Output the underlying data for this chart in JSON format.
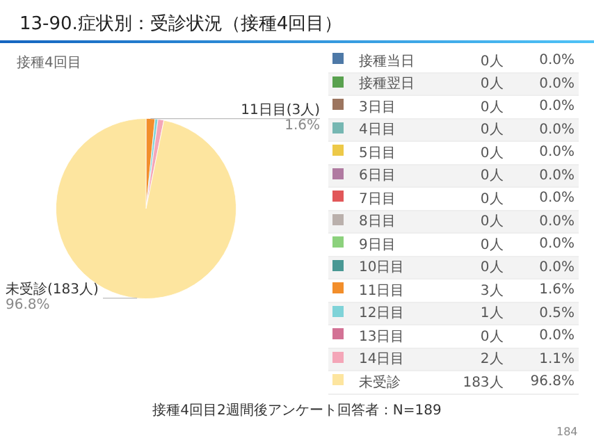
{
  "chart_data": {
    "type": "pie",
    "title": "13-90.症状別：受診状況（接種4回目）",
    "subtitle": "接種4回目",
    "categories": [
      "接種当日",
      "接種翌日",
      "3日目",
      "4日目",
      "5日目",
      "6日目",
      "7日目",
      "8日目",
      "9日目",
      "10日目",
      "11日目",
      "12日目",
      "13日目",
      "14日目",
      "未受診"
    ],
    "values": [
      0,
      0,
      0,
      0,
      0,
      0,
      0,
      0,
      0,
      0,
      3,
      1,
      0,
      2,
      183
    ],
    "colors": [
      "#4e79a7",
      "#59a14f",
      "#9c755f",
      "#76b7b2",
      "#edc948",
      "#b07aa1",
      "#e15759",
      "#bab0ac",
      "#8cd17d",
      "#499894",
      "#f28e2b",
      "#7fd3d8",
      "#d37295",
      "#f4a6b8",
      "#fde59f"
    ],
    "value_labels": [
      "0人",
      "0人",
      "0人",
      "0人",
      "0人",
      "0人",
      "0人",
      "0人",
      "0人",
      "0人",
      "3人",
      "1人",
      "0人",
      "2人",
      "183人"
    ],
    "annotations": [
      {
        "text": "11日目(3人)\n1.6%",
        "x": "11日目"
      },
      {
        "text": "未受診(183人)\n96.8%",
        "x": "未受診"
      },
      {
        "text": "0.0%",
        "x": "接種当日"
      },
      {
        "text": "0.0%",
        "x": "接種翌日"
      },
      {
        "text": "0.0%",
        "x": "3日目"
      },
      {
        "text": "0.0%",
        "x": "4日目"
      },
      {
        "text": "0.0%",
        "x": "5日目"
      },
      {
        "text": "0.0%",
        "x": "6日目"
      },
      {
        "text": "0.0%",
        "x": "7日目"
      },
      {
        "text": "0.0%",
        "x": "8日目"
      },
      {
        "text": "0.0%",
        "x": "9日目"
      },
      {
        "text": "0.0%",
        "x": "10日目"
      },
      {
        "text": "1.6%",
        "x": "11日目"
      },
      {
        "text": "0.5%",
        "x": "12日目"
      },
      {
        "text": "0.0%",
        "x": "13日目"
      },
      {
        "text": "1.1%",
        "x": "14日目"
      },
      {
        "text": "96.8%",
        "x": "未受診"
      },
      "接種4回目2週間後アンケート回答者：N=189",
      "184"
    ],
    "legend": "right"
  }
}
